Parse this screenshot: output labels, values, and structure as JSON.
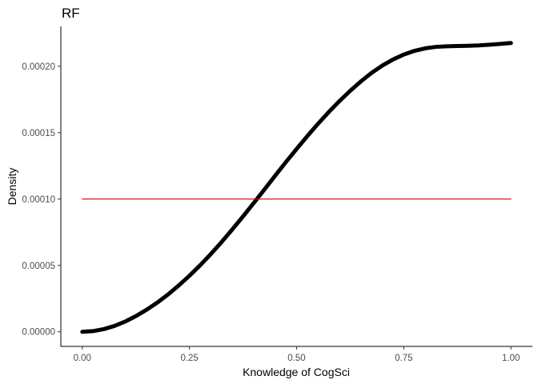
{
  "chart_data": {
    "type": "line",
    "title": "RF",
    "xlabel": "Knowledge of CogSci",
    "ylabel": "Density",
    "xlim": [
      -0.05,
      1.05
    ],
    "ylim": [
      -1.1e-05,
      0.00023
    ],
    "x_ticks": [
      {
        "value": 0.0,
        "label": "0.00"
      },
      {
        "value": 0.25,
        "label": "0.25"
      },
      {
        "value": 0.5,
        "label": "0.50"
      },
      {
        "value": 0.75,
        "label": "0.75"
      },
      {
        "value": 1.0,
        "label": "1.00"
      }
    ],
    "y_ticks": [
      {
        "value": 0.0,
        "label": "0.00000"
      },
      {
        "value": 5e-05,
        "label": "0.00005"
      },
      {
        "value": 0.0001,
        "label": "0.00010"
      },
      {
        "value": 0.00015,
        "label": "0.00015"
      },
      {
        "value": 0.0002,
        "label": "0.00020"
      }
    ],
    "grid": false,
    "series": [
      {
        "style": "thick",
        "color": "#000000",
        "x": [
          0.0,
          0.025,
          0.05,
          0.075,
          0.1,
          0.125,
          0.15,
          0.175,
          0.2,
          0.225,
          0.25,
          0.275,
          0.3,
          0.325,
          0.35,
          0.375,
          0.4,
          0.425,
          0.45,
          0.475,
          0.5,
          0.525,
          0.55,
          0.575,
          0.6,
          0.625,
          0.65,
          0.675,
          0.7,
          0.725,
          0.75,
          0.775,
          0.8,
          0.825,
          0.85,
          0.875,
          0.9,
          0.925,
          0.95,
          0.975,
          1.0
        ],
        "y": [
          0.0,
          5e-07,
          2e-06,
          4.4e-06,
          7.7e-06,
          1.18e-05,
          1.66e-05,
          2.2e-05,
          2.81e-05,
          3.49e-05,
          4.22e-05,
          5.01e-05,
          5.86e-05,
          6.76e-05,
          7.71e-05,
          8.69e-05,
          9.7e-05,
          0.0001072,
          0.0001176,
          0.0001278,
          0.0001377,
          0.0001474,
          0.0001567,
          0.0001655,
          0.0001738,
          0.0001815,
          0.0001886,
          0.000195,
          0.0002005,
          0.0002051,
          0.0002088,
          0.0002116,
          0.0002135,
          0.0002146,
          0.000215,
          0.0002152,
          0.0002154,
          0.0002157,
          0.0002162,
          0.0002168,
          0.0002175
        ]
      },
      {
        "style": "thin",
        "color": "#cc0000",
        "x": [
          0.0,
          1.0
        ],
        "y": [
          0.0001,
          0.0001
        ]
      }
    ]
  }
}
